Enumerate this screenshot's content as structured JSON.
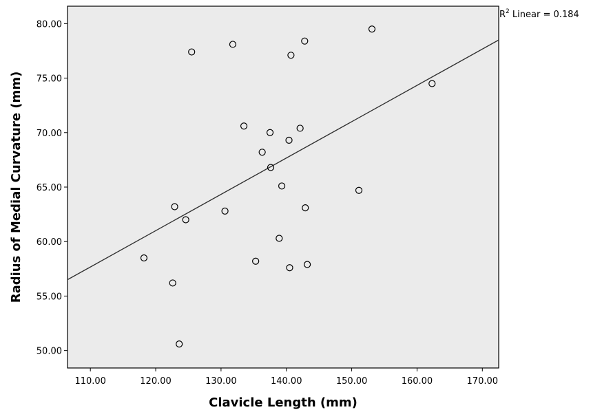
{
  "chart_data": {
    "type": "scatter",
    "title": "",
    "xlabel": "Clavicle Length (mm)",
    "ylabel": "Radius of Medial Curvature (mm)",
    "xlim": [
      106.5,
      172.5
    ],
    "ylim": [
      48.4,
      81.6
    ],
    "x_ticks": [
      "110.00",
      "120.00",
      "130.00",
      "140.00",
      "150.00",
      "160.00",
      "170.00"
    ],
    "y_ticks": [
      "50.00",
      "55.00",
      "60.00",
      "65.00",
      "70.00",
      "75.00",
      "80.00"
    ],
    "grid": false,
    "background": "#ebebeb",
    "points": [
      {
        "x": 125.5,
        "y": 77.4
      },
      {
        "x": 131.8,
        "y": 78.1
      },
      {
        "x": 140.7,
        "y": 77.1
      },
      {
        "x": 142.8,
        "y": 78.4
      },
      {
        "x": 153.1,
        "y": 79.5
      },
      {
        "x": 162.3,
        "y": 74.5
      },
      {
        "x": 133.5,
        "y": 70.6
      },
      {
        "x": 137.5,
        "y": 70.0
      },
      {
        "x": 142.1,
        "y": 70.4
      },
      {
        "x": 140.4,
        "y": 69.3
      },
      {
        "x": 136.3,
        "y": 68.2
      },
      {
        "x": 137.6,
        "y": 66.8
      },
      {
        "x": 139.3,
        "y": 65.1
      },
      {
        "x": 151.1,
        "y": 64.7
      },
      {
        "x": 122.9,
        "y": 63.2
      },
      {
        "x": 142.9,
        "y": 63.1
      },
      {
        "x": 130.6,
        "y": 62.8
      },
      {
        "x": 124.6,
        "y": 62.0
      },
      {
        "x": 138.9,
        "y": 60.3
      },
      {
        "x": 118.2,
        "y": 58.5
      },
      {
        "x": 135.3,
        "y": 58.2
      },
      {
        "x": 143.2,
        "y": 57.9
      },
      {
        "x": 140.5,
        "y": 57.6
      },
      {
        "x": 122.6,
        "y": 56.2
      },
      {
        "x": 123.6,
        "y": 50.6
      }
    ],
    "fit_line": {
      "x1": 106.5,
      "y1": 56.5,
      "x2": 172.5,
      "y2": 78.5
    },
    "r2_label": "R",
    "r2_superscript": "2",
    "r2_text": " Linear = 0.184"
  }
}
